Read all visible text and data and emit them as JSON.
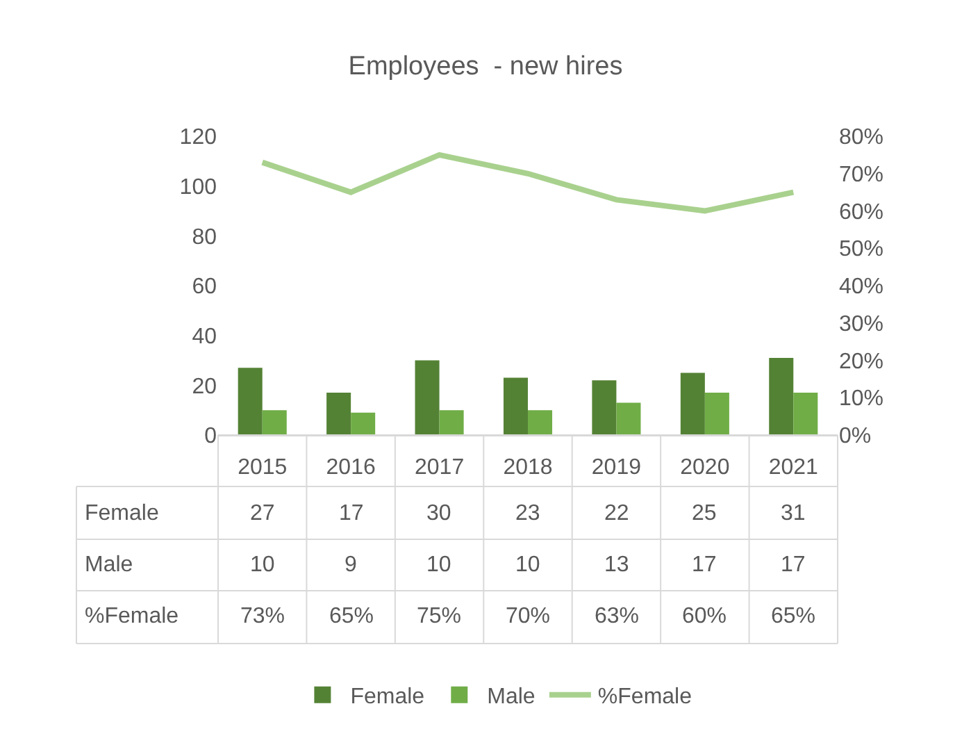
{
  "chart_data": {
    "type": "bar",
    "title": "Employees  - new hires",
    "categories": [
      "2015",
      "2016",
      "2017",
      "2018",
      "2019",
      "2020",
      "2021"
    ],
    "series": [
      {
        "name": "Female",
        "color": "#548235",
        "values": [
          27,
          17,
          30,
          23,
          22,
          25,
          31
        ],
        "value_labels": [
          "27",
          "17",
          "30",
          "23",
          "22",
          "25",
          "31"
        ]
      },
      {
        "name": "Male",
        "color": "#70ad47",
        "values": [
          10,
          9,
          10,
          10,
          13,
          17,
          17
        ],
        "value_labels": [
          "10",
          "9",
          "10",
          "10",
          "13",
          "17",
          "17"
        ]
      },
      {
        "name": "%Female",
        "type": "line",
        "axis": "y2",
        "color": "#a9d18e",
        "values": [
          73,
          65,
          75,
          70,
          63,
          60,
          65
        ],
        "value_labels": [
          "73%",
          "65%",
          "75%",
          "70%",
          "63%",
          "60%",
          "65%"
        ]
      }
    ],
    "ylim": [
      0,
      120
    ],
    "yticks": [
      0,
      20,
      40,
      60,
      80,
      100,
      120
    ],
    "y2lim": [
      0,
      80
    ],
    "y2ticks": [
      {
        "value": 0,
        "label": "0%"
      },
      {
        "value": 10,
        "label": "10%"
      },
      {
        "value": 20,
        "label": "20%"
      },
      {
        "value": 30,
        "label": "30%"
      },
      {
        "value": 40,
        "label": "40%"
      },
      {
        "value": 50,
        "label": "50%"
      },
      {
        "value": 60,
        "label": "60%"
      },
      {
        "value": 70,
        "label": "70%"
      },
      {
        "value": 80,
        "label": "80%"
      }
    ],
    "grid": false,
    "legend": "bottom"
  }
}
